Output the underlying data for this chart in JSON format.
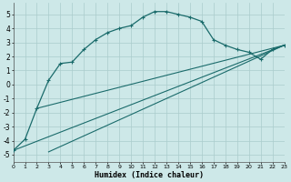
{
  "xlabel": "Humidex (Indice chaleur)",
  "xlim": [
    0,
    23
  ],
  "ylim": [
    -5.5,
    5.8
  ],
  "yticks": [
    -5,
    -4,
    -3,
    -2,
    -1,
    0,
    1,
    2,
    3,
    4,
    5
  ],
  "xticks": [
    0,
    1,
    2,
    3,
    4,
    5,
    6,
    7,
    8,
    9,
    10,
    11,
    12,
    13,
    14,
    15,
    16,
    17,
    18,
    19,
    20,
    21,
    22,
    23
  ],
  "background_color": "#cde8e8",
  "grid_color": "#aacccc",
  "line_color": "#1a6b6b",
  "curve_main_x": [
    0,
    1,
    2,
    3,
    4,
    5,
    6,
    7,
    8,
    9,
    10,
    11,
    12,
    13,
    14,
    15,
    16,
    17,
    18,
    19,
    20,
    21,
    22,
    23
  ],
  "curve_main_y": [
    -4.7,
    -3.9,
    -1.7,
    0.3,
    1.5,
    1.6,
    2.5,
    3.2,
    3.7,
    4.0,
    4.2,
    4.8,
    5.2,
    5.2,
    5.0,
    4.8,
    4.5,
    3.2,
    2.8,
    2.5,
    2.3,
    1.8,
    2.5,
    2.8
  ],
  "line1_x": [
    0,
    23
  ],
  "line1_y": [
    -4.7,
    2.8
  ],
  "line2_x": [
    2,
    23
  ],
  "line2_y": [
    -1.7,
    2.8
  ],
  "line3_x": [
    3,
    23
  ],
  "line3_y": [
    -4.8,
    2.8
  ]
}
